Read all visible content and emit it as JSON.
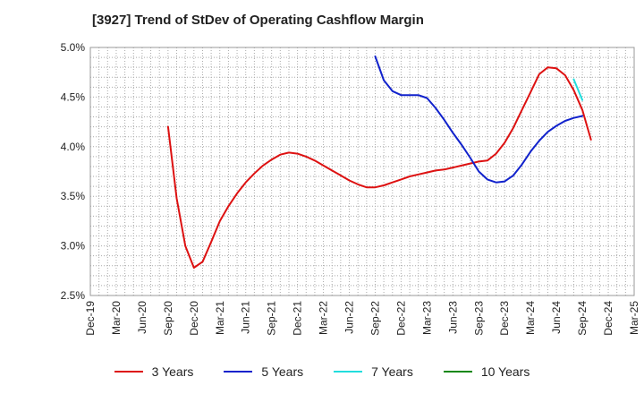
{
  "title": "[3927]  Trend of StDev of Operating Cashflow Margin",
  "chart_data": {
    "type": "line",
    "title": "[3927]  Trend of StDev of Operating Cashflow Margin",
    "x_tick_labels": [
      "Dec-19",
      "Mar-20",
      "Jun-20",
      "Sep-20",
      "Dec-20",
      "Mar-21",
      "Jun-21",
      "Sep-21",
      "Dec-21",
      "Mar-22",
      "Jun-22",
      "Sep-22",
      "Dec-22",
      "Mar-23",
      "Jun-23",
      "Sep-23",
      "Dec-23",
      "Mar-24",
      "Jun-24",
      "Sep-24",
      "Dec-24",
      "Mar-25"
    ],
    "y_tick_labels": [
      "5.0%",
      "4.5%",
      "4.0%",
      "3.5%",
      "3.0%",
      "2.5%"
    ],
    "ylim": [
      2.5,
      5.0
    ],
    "y_ticks": [
      5.0,
      4.5,
      4.0,
      3.5,
      3.0,
      2.5
    ],
    "grid": true,
    "legend_position": "bottom",
    "series": [
      {
        "name": "3 Years",
        "color": "#dd1111",
        "start_month": 9,
        "values": [
          4.2,
          3.48,
          3.0,
          2.78,
          2.84,
          3.04,
          3.25,
          3.4,
          3.53,
          3.64,
          3.73,
          3.81,
          3.87,
          3.92,
          3.94,
          3.93,
          3.9,
          3.86,
          3.81,
          3.76,
          3.71,
          3.66,
          3.62,
          3.59,
          3.59,
          3.61,
          3.64,
          3.67,
          3.7,
          3.72,
          3.74,
          3.76,
          3.77,
          3.79,
          3.81,
          3.83,
          3.85,
          3.86,
          3.93,
          4.04,
          4.19,
          4.37,
          4.55,
          4.73,
          4.8,
          4.79,
          4.72,
          4.57,
          4.37,
          4.07
        ]
      },
      {
        "name": "5 Years",
        "color": "#1122cc",
        "start_month": 33,
        "values": [
          4.91,
          4.67,
          4.56,
          4.52,
          4.52,
          4.52,
          4.49,
          4.39,
          4.27,
          4.14,
          4.02,
          3.89,
          3.75,
          3.67,
          3.64,
          3.65,
          3.71,
          3.82,
          3.95,
          4.06,
          4.15,
          4.21,
          4.26,
          4.29,
          4.31
        ]
      },
      {
        "name": "7 Years",
        "color": "#22dddd",
        "start_month": 56,
        "values": [
          4.68,
          4.47
        ]
      },
      {
        "name": "10 Years",
        "color": "#118811",
        "start_month": 0,
        "values": []
      }
    ]
  }
}
